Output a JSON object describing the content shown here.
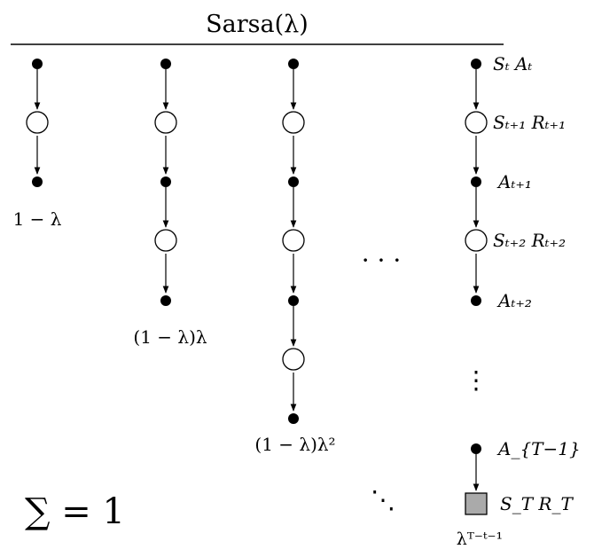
{
  "title": "Sarsa(λ)",
  "sum_label": "∑ = 1",
  "weights": [
    "1 − λ",
    "(1 − λ)λ",
    "(1 − λ)λ²",
    "λᵀ⁻ᵗ⁻¹"
  ],
  "ellipsis_mid": "· · ·",
  "ellipsis_vertical": "⋮",
  "ellipsis_diag": "⋱",
  "labels": {
    "st_at": "Sₜ  Aₜ",
    "s1_r1": "Sₜ₊₁  Rₜ₊₁",
    "a1": "Aₜ₊₁",
    "s2_r2": "Sₜ₊₂  Rₜ₊₂",
    "a2": "Aₜ₊₂",
    "aT1": "A_{T−1}",
    "sT_rT": "S_T  R_T"
  },
  "colors": {
    "ink": "#000000",
    "terminal_fill": "#aaaaaa"
  }
}
